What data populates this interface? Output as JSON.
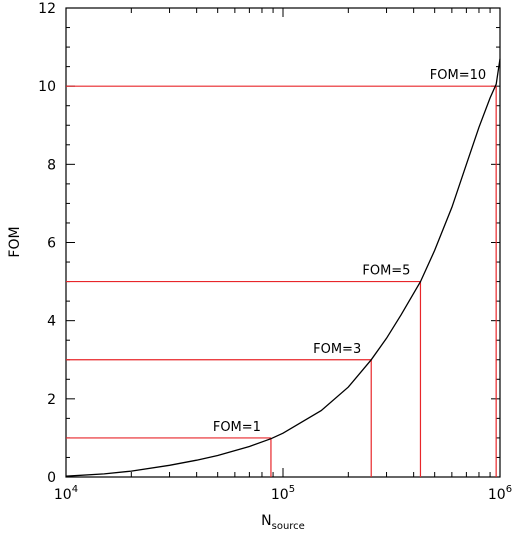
{
  "chart_data": {
    "type": "line",
    "xlabel": "N",
    "xlabel_sub": "source",
    "ylabel": "FOM",
    "x_scale": "log",
    "xlim": [
      10000,
      1000000
    ],
    "ylim": [
      0,
      12
    ],
    "x_ticks": [
      {
        "value": 10000,
        "base": "10",
        "exp": "4"
      },
      {
        "value": 100000,
        "base": "10",
        "exp": "5"
      },
      {
        "value": 1000000,
        "base": "10",
        "exp": "6"
      }
    ],
    "y_ticks": [
      0,
      2,
      4,
      6,
      8,
      10,
      12
    ],
    "grid": false,
    "curve": {
      "color": "#000000",
      "x": [
        10000,
        15000,
        20000,
        30000,
        40000,
        50000,
        70000,
        88000,
        100000,
        150000,
        200000,
        255000,
        300000,
        350000,
        430000,
        500000,
        600000,
        700000,
        800000,
        900000,
        960000,
        1000000
      ],
      "y": [
        0.02,
        0.08,
        0.15,
        0.3,
        0.43,
        0.55,
        0.78,
        0.98,
        1.12,
        1.7,
        2.3,
        3.0,
        3.55,
        4.15,
        5.0,
        5.8,
        6.9,
        8.0,
        8.95,
        9.7,
        10.05,
        10.7
      ]
    },
    "markers": [
      {
        "label": "FOM=1",
        "x": 88000,
        "y": 1
      },
      {
        "label": "FOM=3",
        "x": 255000,
        "y": 3
      },
      {
        "label": "FOM=5",
        "x": 430000,
        "y": 5
      },
      {
        "label": "FOM=10",
        "x": 960000,
        "y": 10
      }
    ],
    "marker_color": "#e8262a"
  }
}
